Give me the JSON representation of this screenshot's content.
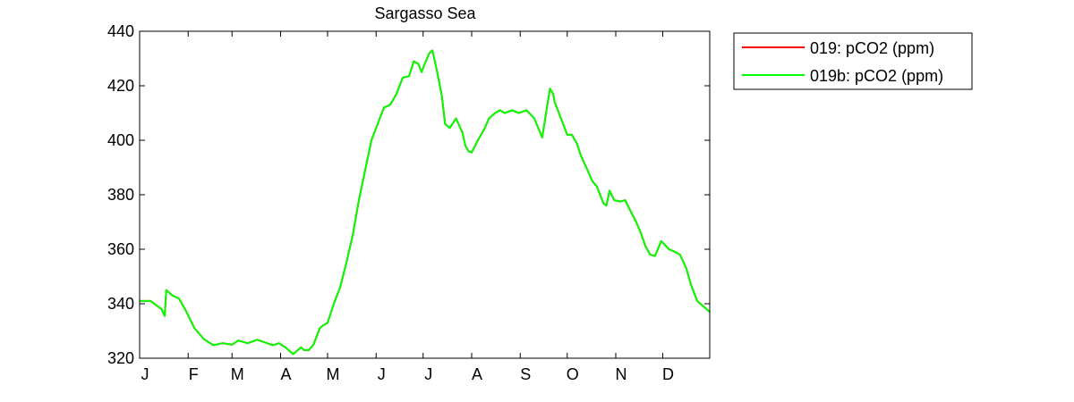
{
  "chart_data": {
    "type": "line",
    "title": "Sargasso Sea",
    "xlabel": "",
    "ylabel": "",
    "x_unit": "day of year",
    "xlim": [
      1,
      365
    ],
    "ylim": [
      320,
      440
    ],
    "yticks": [
      320,
      340,
      360,
      380,
      400,
      420,
      440
    ],
    "xticks": [
      {
        "label": "J",
        "day": 1
      },
      {
        "label": "F",
        "day": 32
      },
      {
        "label": "M",
        "day": 60
      },
      {
        "label": "A",
        "day": 91
      },
      {
        "label": "M",
        "day": 121
      },
      {
        "label": "J",
        "day": 152
      },
      {
        "label": "J",
        "day": 182
      },
      {
        "label": "A",
        "day": 213
      },
      {
        "label": "S",
        "day": 244
      },
      {
        "label": "O",
        "day": 274
      },
      {
        "label": "N",
        "day": 305
      },
      {
        "label": "D",
        "day": 335
      }
    ],
    "grid": false,
    "legend_position": "outside-top-right",
    "series": [
      {
        "name": "019: pCO2 (ppm)",
        "color": "#ff0000",
        "x": [
          1,
          8,
          15,
          17,
          18,
          22,
          26,
          30,
          36,
          42,
          48,
          54,
          60,
          64,
          70,
          76,
          80,
          86,
          90,
          94,
          99,
          101,
          104,
          106,
          109,
          112,
          116,
          118,
          121,
          125,
          129,
          133,
          137,
          141,
          145,
          149,
          153,
          157,
          161,
          165,
          169,
          173,
          176,
          179,
          181,
          183,
          186,
          188,
          191,
          194,
          196,
          199,
          203,
          207,
          209,
          211,
          213,
          217,
          219,
          221,
          224,
          228,
          231,
          234,
          239,
          243,
          248,
          253,
          258,
          263,
          265,
          266,
          270,
          274,
          277,
          280,
          283,
          287,
          290,
          293,
          297,
          299,
          301,
          304,
          308,
          311,
          314,
          318,
          321,
          324,
          327,
          330,
          334,
          339,
          343,
          346,
          350,
          353,
          357,
          362,
          365
        ],
        "y": [
          341,
          341,
          338,
          335.5,
          345,
          343,
          342,
          338,
          331,
          327,
          324.8,
          325.5,
          325,
          326.5,
          325.5,
          326.8,
          326,
          324.8,
          325.5,
          324,
          321.5,
          322.5,
          324,
          323,
          323,
          325,
          331,
          332,
          333,
          340,
          346,
          355,
          365,
          378,
          389,
          400,
          406,
          412,
          413,
          417,
          423,
          423.5,
          429,
          428,
          425,
          428,
          432,
          433,
          425,
          416,
          406,
          404.5,
          408,
          403,
          398,
          396,
          395.5,
          400,
          402,
          404,
          408,
          410,
          411,
          410,
          411,
          410,
          411,
          408,
          401,
          419,
          417,
          414,
          408,
          402,
          402,
          399,
          394,
          389,
          385,
          383,
          377,
          376,
          381.5,
          378,
          377.5,
          378,
          374.5,
          370,
          366,
          361,
          358,
          357.5,
          363,
          360,
          359,
          358,
          353,
          347,
          341,
          338.5,
          337
        ]
      },
      {
        "name": "019b: pCO2 (ppm)",
        "color": "#00ff00",
        "x": [
          1,
          8,
          15,
          17,
          18,
          22,
          26,
          30,
          36,
          42,
          48,
          54,
          60,
          64,
          70,
          76,
          80,
          86,
          90,
          94,
          99,
          101,
          104,
          106,
          109,
          112,
          116,
          118,
          121,
          125,
          129,
          133,
          137,
          141,
          145,
          149,
          153,
          157,
          161,
          165,
          169,
          173,
          176,
          179,
          181,
          183,
          186,
          188,
          191,
          194,
          196,
          199,
          203,
          207,
          209,
          211,
          213,
          217,
          219,
          221,
          224,
          228,
          231,
          234,
          239,
          243,
          248,
          253,
          258,
          263,
          265,
          266,
          270,
          274,
          277,
          280,
          283,
          287,
          290,
          293,
          297,
          299,
          301,
          304,
          308,
          311,
          314,
          318,
          321,
          324,
          327,
          330,
          334,
          339,
          343,
          346,
          350,
          353,
          357,
          362,
          365
        ],
        "y": [
          341,
          341,
          338,
          335.5,
          345,
          343,
          342,
          338,
          331,
          327,
          324.8,
          325.5,
          325,
          326.5,
          325.5,
          326.8,
          326,
          324.8,
          325.5,
          324,
          321.5,
          322.5,
          324,
          323,
          323,
          325,
          331,
          332,
          333,
          340,
          346,
          355,
          365,
          378,
          389,
          400,
          406,
          412,
          413,
          417,
          423,
          423.5,
          429,
          428,
          425,
          428,
          432,
          433,
          425,
          416,
          406,
          404.5,
          408,
          403,
          398,
          396,
          395.5,
          400,
          402,
          404,
          408,
          410,
          411,
          410,
          411,
          410,
          411,
          408,
          401,
          419,
          417,
          414,
          408,
          402,
          402,
          399,
          394,
          389,
          385,
          383,
          377,
          376,
          381.5,
          378,
          377.5,
          378,
          374.5,
          370,
          366,
          361,
          358,
          357.5,
          363,
          360,
          359,
          358,
          353,
          347,
          341,
          338.5,
          337
        ]
      }
    ]
  }
}
